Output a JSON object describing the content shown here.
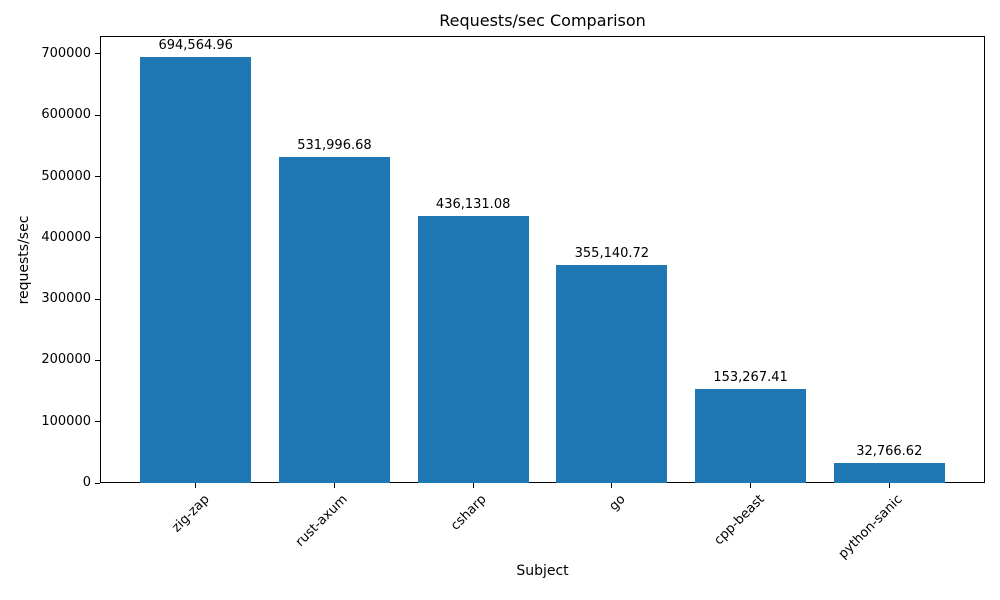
{
  "chart_data": {
    "type": "bar",
    "title": "Requests/sec Comparison",
    "xlabel": "Subject",
    "ylabel": "requests/sec",
    "categories": [
      "zig-zap",
      "rust-axum",
      "csharp",
      "go",
      "cpp-beast",
      "python-sanic"
    ],
    "values": [
      694564.96,
      531996.68,
      436131.08,
      355140.72,
      153267.41,
      32766.62
    ],
    "bar_labels": [
      "694,564.96",
      "531,996.68",
      "436,131.08",
      "355,140.72",
      "153,267.41",
      "32,766.62"
    ],
    "bar_color": "#1f77b4",
    "y_ticks": [
      0,
      100000,
      200000,
      300000,
      400000,
      500000,
      600000,
      700000
    ],
    "y_tick_labels": [
      "0",
      "100000",
      "200000",
      "300000",
      "400000",
      "500000",
      "600000",
      "700000"
    ],
    "ylim": [
      0,
      729293
    ],
    "grid": false,
    "legend": null,
    "x_tick_rotation": 45
  }
}
